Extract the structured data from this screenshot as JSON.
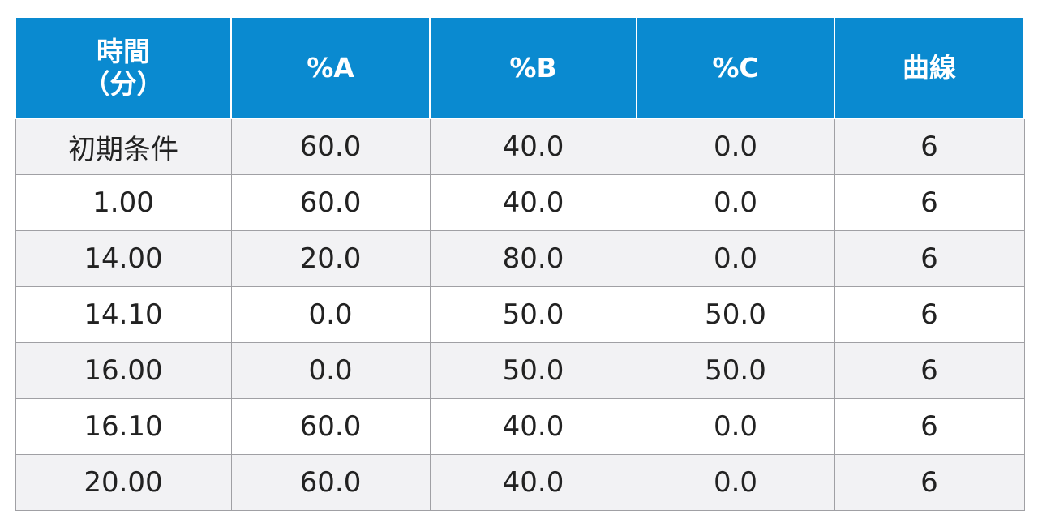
{
  "table": {
    "header": [
      "時間\n（分）",
      "%A",
      "%B",
      "%C",
      "曲線"
    ],
    "rows": [
      [
        "初期条件",
        "60.0",
        "40.0",
        "0.0",
        "6"
      ],
      [
        "1.00",
        "60.0",
        "40.0",
        "0.0",
        "6"
      ],
      [
        "14.00",
        "20.0",
        "80.0",
        "0.0",
        "6"
      ],
      [
        "14.10",
        "0.0",
        "50.0",
        "50.0",
        "6"
      ],
      [
        "16.00",
        "0.0",
        "50.0",
        "50.0",
        "6"
      ],
      [
        "16.10",
        "60.0",
        "40.0",
        "0.0",
        "6"
      ],
      [
        "20.00",
        "60.0",
        "40.0",
        "0.0",
        "6"
      ]
    ]
  }
}
